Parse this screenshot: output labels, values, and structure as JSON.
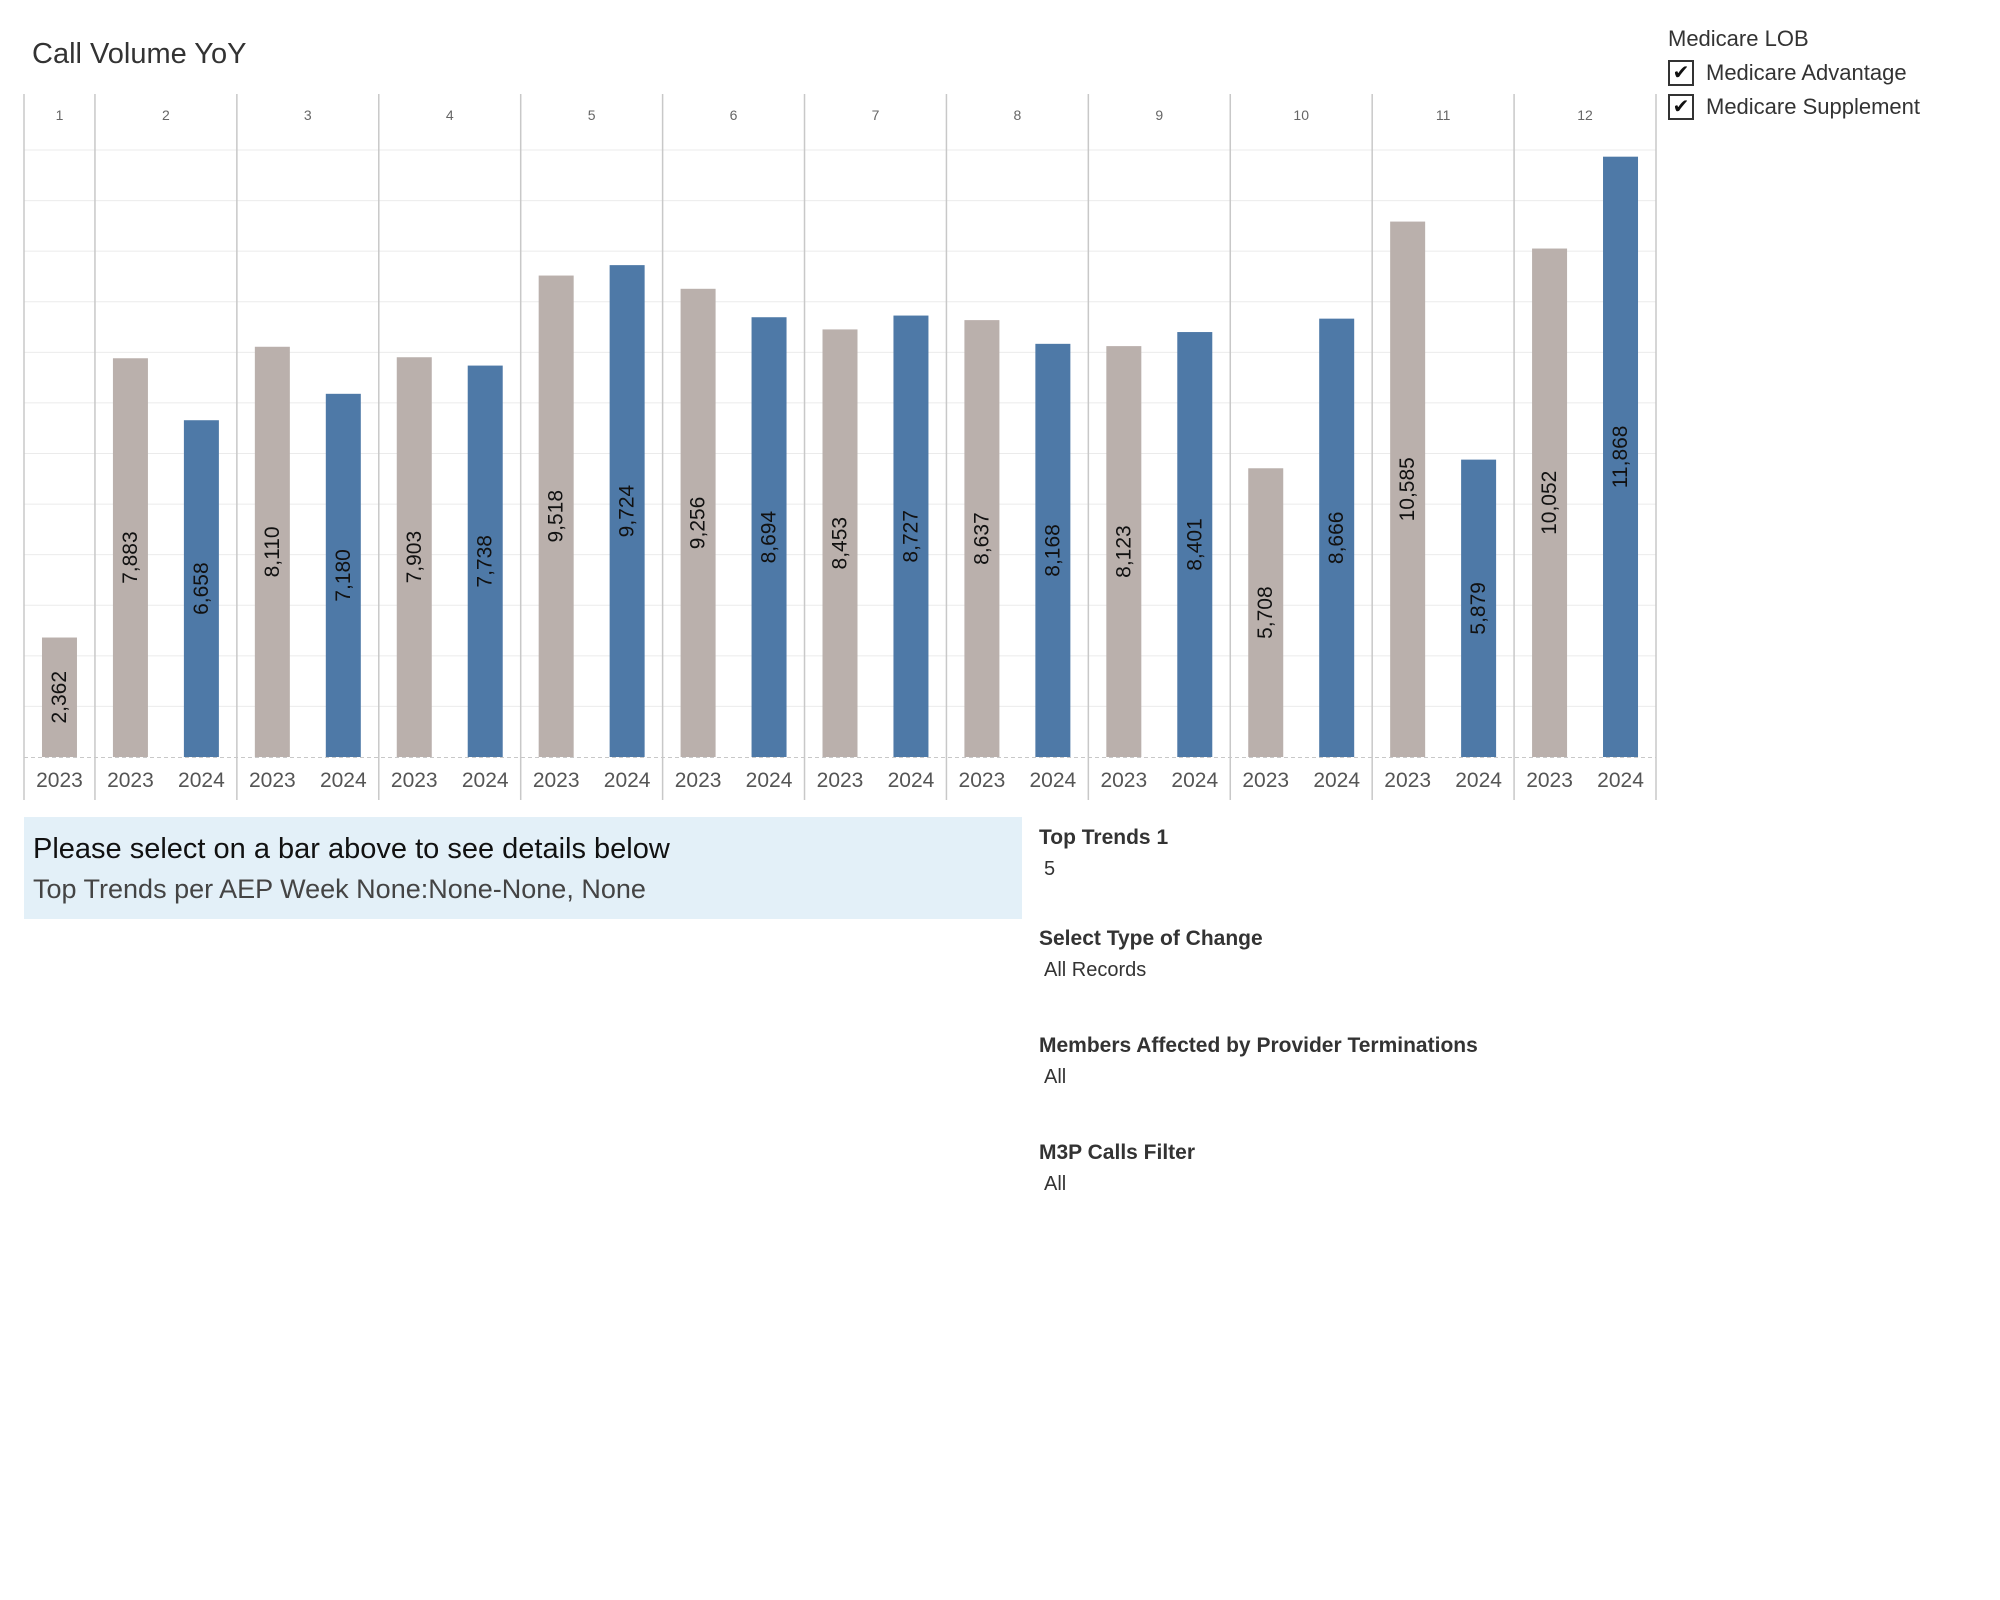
{
  "chart_data": {
    "type": "bar",
    "title": "Call Volume YoY",
    "xlabel": "",
    "ylabel": "",
    "ylim": [
      0,
      12000
    ],
    "grid": true,
    "groups": [
      {
        "label": "1",
        "bars": [
          {
            "year": "2023",
            "value": 2362,
            "value_label": "2,362"
          }
        ]
      },
      {
        "label": "2",
        "bars": [
          {
            "year": "2023",
            "value": 7883,
            "value_label": "7,883"
          },
          {
            "year": "2024",
            "value": 6658,
            "value_label": "6,658"
          }
        ]
      },
      {
        "label": "3",
        "bars": [
          {
            "year": "2023",
            "value": 8110,
            "value_label": "8,110"
          },
          {
            "year": "2024",
            "value": 7180,
            "value_label": "7,180"
          }
        ]
      },
      {
        "label": "4",
        "bars": [
          {
            "year": "2023",
            "value": 7903,
            "value_label": "7,903"
          },
          {
            "year": "2024",
            "value": 7738,
            "value_label": "7,738"
          }
        ]
      },
      {
        "label": "5",
        "bars": [
          {
            "year": "2023",
            "value": 9518,
            "value_label": "9,518"
          },
          {
            "year": "2024",
            "value": 9724,
            "value_label": "9,724"
          }
        ]
      },
      {
        "label": "6",
        "bars": [
          {
            "year": "2023",
            "value": 9256,
            "value_label": "9,256"
          },
          {
            "year": "2024",
            "value": 8694,
            "value_label": "8,694"
          }
        ]
      },
      {
        "label": "7",
        "bars": [
          {
            "year": "2023",
            "value": 8453,
            "value_label": "8,453"
          },
          {
            "year": "2024",
            "value": 8727,
            "value_label": "8,727"
          }
        ]
      },
      {
        "label": "8",
        "bars": [
          {
            "year": "2023",
            "value": 8637,
            "value_label": "8,637"
          },
          {
            "year": "2024",
            "value": 8168,
            "value_label": "8,168"
          }
        ]
      },
      {
        "label": "9",
        "bars": [
          {
            "year": "2023",
            "value": 8123,
            "value_label": "8,123"
          },
          {
            "year": "2024",
            "value": 8401,
            "value_label": "8,401"
          }
        ]
      },
      {
        "label": "10",
        "bars": [
          {
            "year": "2023",
            "value": 5708,
            "value_label": "5,708"
          },
          {
            "year": "2024",
            "value": 8666,
            "value_label": "8,666"
          }
        ]
      },
      {
        "label": "11",
        "bars": [
          {
            "year": "2023",
            "value": 10585,
            "value_label": "10,585"
          },
          {
            "year": "2024",
            "value": 5879,
            "value_label": "5,879"
          }
        ]
      },
      {
        "label": "12",
        "bars": [
          {
            "year": "2023",
            "value": 10052,
            "value_label": "10,052"
          },
          {
            "year": "2024",
            "value": 11868,
            "value_label": "11,868"
          }
        ]
      }
    ],
    "series_colors": {
      "2023": "#bab0ac",
      "2024": "#4e79a7"
    }
  },
  "legend": {
    "title": "Medicare LOB",
    "items": [
      {
        "label": "Medicare Advantage",
        "checked": true,
        "mark": "✔"
      },
      {
        "label": "Medicare Supplement",
        "checked": true,
        "mark": "✔"
      }
    ]
  },
  "info_panel": {
    "line1": "Please select on a bar above to see details below",
    "line2": "Top Trends per AEP Week None:None-None, None"
  },
  "filters": [
    {
      "label": "Top Trends 1",
      "value": "5"
    },
    {
      "label": "Select Type of Change",
      "value": "All Records"
    },
    {
      "label": "Members Affected by Provider Terminations",
      "value": "All"
    },
    {
      "label": "M3P Calls Filter",
      "value": "All"
    }
  ]
}
